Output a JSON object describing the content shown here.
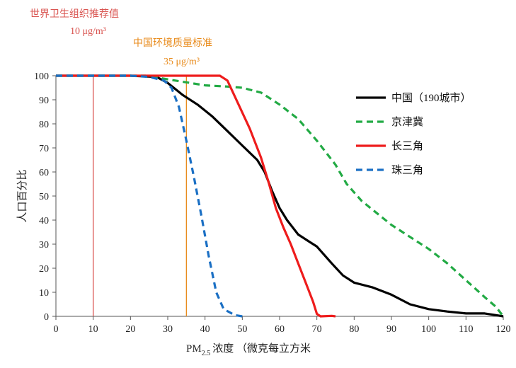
{
  "chart_data": {
    "type": "line",
    "title": "",
    "xlabel": "浓度 （微克每立方米",
    "xlabel_prefix": "PM",
    "xlabel_subscript": "2.5",
    "ylabel": "人口百分比",
    "xlim": [
      0,
      120
    ],
    "ylim": [
      0,
      100
    ],
    "xticks": [
      0,
      10,
      20,
      30,
      40,
      50,
      60,
      70,
      80,
      90,
      100,
      110,
      120
    ],
    "yticks": [
      0,
      10,
      20,
      30,
      40,
      50,
      60,
      70,
      80,
      90,
      100
    ],
    "grid": false,
    "legend_position": "top-right",
    "series": [
      {
        "name": "中国（190城市）",
        "color": "#000000",
        "dash": "solid",
        "points": [
          [
            0,
            100
          ],
          [
            20,
            100
          ],
          [
            27,
            99.5
          ],
          [
            30,
            97
          ],
          [
            34,
            92
          ],
          [
            38,
            88
          ],
          [
            42,
            83
          ],
          [
            46,
            77
          ],
          [
            50,
            71
          ],
          [
            54,
            65
          ],
          [
            56,
            60
          ],
          [
            58,
            52
          ],
          [
            60,
            45
          ],
          [
            62,
            40
          ],
          [
            65,
            34
          ],
          [
            68,
            31
          ],
          [
            70,
            29
          ],
          [
            74,
            22
          ],
          [
            77,
            17
          ],
          [
            80,
            14
          ],
          [
            85,
            12
          ],
          [
            90,
            9
          ],
          [
            95,
            5
          ],
          [
            100,
            3
          ],
          [
            105,
            2
          ],
          [
            110,
            1.2
          ],
          [
            115,
            1.2
          ],
          [
            118,
            0.5
          ],
          [
            120,
            0
          ]
        ]
      },
      {
        "name": "京津冀",
        "color": "#22aa44",
        "dash": "dashed",
        "points": [
          [
            0,
            100
          ],
          [
            24,
            100
          ],
          [
            28,
            99
          ],
          [
            32,
            98
          ],
          [
            36,
            97
          ],
          [
            40,
            96
          ],
          [
            46,
            95.5
          ],
          [
            50,
            95
          ],
          [
            55,
            93
          ],
          [
            60,
            88
          ],
          [
            65,
            82
          ],
          [
            70,
            73
          ],
          [
            75,
            63
          ],
          [
            78,
            55
          ],
          [
            82,
            48
          ],
          [
            86,
            43
          ],
          [
            90,
            38
          ],
          [
            95,
            33
          ],
          [
            100,
            28
          ],
          [
            105,
            22
          ],
          [
            110,
            15
          ],
          [
            115,
            8
          ],
          [
            118,
            4
          ],
          [
            120,
            0
          ]
        ]
      },
      {
        "name": "长三角",
        "color": "#ee1c1c",
        "dash": "solid",
        "points": [
          [
            0,
            100
          ],
          [
            44,
            100
          ],
          [
            46,
            98
          ],
          [
            49,
            88
          ],
          [
            52,
            78
          ],
          [
            55,
            66
          ],
          [
            57,
            56
          ],
          [
            59,
            45
          ],
          [
            61,
            37
          ],
          [
            63,
            30
          ],
          [
            65,
            22
          ],
          [
            67,
            14
          ],
          [
            69,
            6
          ],
          [
            70,
            1
          ],
          [
            71,
            0
          ],
          [
            74,
            0.2
          ],
          [
            75,
            0
          ]
        ]
      },
      {
        "name": "珠三角",
        "color": "#1a6fc4",
        "dash": "dashed",
        "points": [
          [
            0,
            100
          ],
          [
            20,
            100
          ],
          [
            25,
            99.5
          ],
          [
            29,
            98
          ],
          [
            31,
            95
          ],
          [
            33,
            87
          ],
          [
            35,
            73
          ],
          [
            37,
            58
          ],
          [
            39,
            42
          ],
          [
            41,
            25
          ],
          [
            43,
            10
          ],
          [
            45,
            3
          ],
          [
            48,
            0.5
          ],
          [
            50,
            0
          ]
        ]
      }
    ],
    "reference_lines": [
      {
        "x": 10,
        "color": "#d9534f",
        "label_line1": "世界卫生组织推荐值",
        "label_line2": "10 μg/m³"
      },
      {
        "x": 35,
        "color": "#e88a1a",
        "label_line1": "中国环境质量标准",
        "label_line2": "35 μg/m³"
      }
    ]
  }
}
